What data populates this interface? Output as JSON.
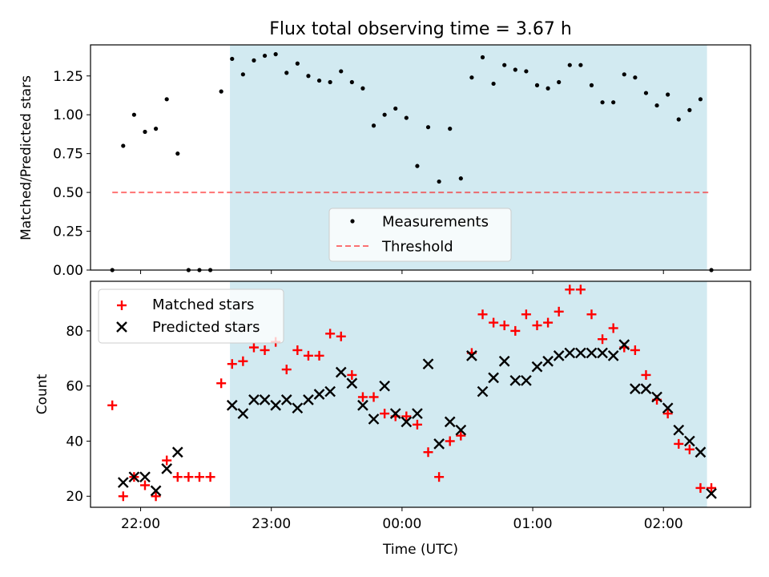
{
  "chart_data": [
    {
      "type": "scatter",
      "title": "Flux total observing time = 3.67 h",
      "ylabel": "Matched/Predicted stars",
      "ylim": [
        0,
        1.45
      ],
      "yticks": [
        0.0,
        0.25,
        0.5,
        0.75,
        1.0,
        1.25
      ],
      "ytick_labels": [
        "0.00",
        "0.25",
        "0.50",
        "0.75",
        "1.00",
        "1.25"
      ],
      "xlim": [
        "21:37",
        "02:40"
      ],
      "observing_window": [
        "22:41",
        "02:20"
      ],
      "observing_window_color": "#add8e6",
      "legend": {
        "placement": "lower-center",
        "entries": [
          "Measurements",
          "Threshold"
        ]
      },
      "threshold": {
        "name": "Threshold",
        "value": 0.5,
        "x_range": [
          "21:47",
          "02:21"
        ],
        "color": "#ff0000",
        "style": "dashed"
      },
      "series": [
        {
          "name": "Measurements",
          "color": "#000000",
          "marker": "dot",
          "x": [
            "21:47",
            "21:52",
            "21:57",
            "22:02",
            "22:07",
            "22:12",
            "22:17",
            "22:22",
            "22:27",
            "22:32",
            "22:37",
            "22:42",
            "22:47",
            "22:52",
            "22:57",
            "23:02",
            "23:07",
            "23:12",
            "23:17",
            "23:22",
            "23:27",
            "23:32",
            "23:37",
            "23:42",
            "23:47",
            "23:52",
            "23:57",
            "00:02",
            "00:07",
            "00:12",
            "00:17",
            "00:22",
            "00:27",
            "00:32",
            "00:37",
            "00:42",
            "00:47",
            "00:52",
            "00:57",
            "01:02",
            "01:07",
            "01:12",
            "01:17",
            "01:22",
            "01:27",
            "01:32",
            "01:37",
            "01:42",
            "01:47",
            "01:52",
            "01:57",
            "02:02",
            "02:07",
            "02:12",
            "02:17",
            "02:22"
          ],
          "y": [
            0.0,
            0.8,
            1.0,
            0.89,
            0.91,
            1.1,
            0.75,
            0.0,
            0.0,
            0.0,
            1.15,
            1.36,
            1.26,
            1.35,
            1.38,
            1.39,
            1.27,
            1.33,
            1.25,
            1.22,
            1.21,
            1.28,
            1.21,
            1.17,
            0.93,
            1.0,
            1.04,
            0.98,
            0.67,
            0.92,
            0.57,
            0.91,
            0.59,
            1.24,
            1.37,
            1.2,
            1.32,
            1.29,
            1.28,
            1.19,
            1.17,
            1.21,
            1.32,
            1.32,
            1.19,
            1.08,
            1.08,
            1.26,
            1.24,
            1.14,
            1.06,
            1.13,
            0.97,
            1.03,
            1.1,
            0.0
          ]
        }
      ]
    },
    {
      "type": "scatter",
      "xlabel": "Time (UTC)",
      "ylabel": "Count",
      "ylim": [
        16,
        98
      ],
      "yticks": [
        20,
        40,
        60,
        80
      ],
      "ytick_labels": [
        "20",
        "40",
        "60",
        "80"
      ],
      "xlim": [
        "21:37",
        "02:40"
      ],
      "xticks": [
        "22:00",
        "23:00",
        "00:00",
        "01:00",
        "02:00"
      ],
      "observing_window": [
        "22:41",
        "02:20"
      ],
      "observing_window_color": "#add8e6",
      "legend": {
        "placement": "top-left",
        "entries": [
          "Matched stars",
          "Predicted stars"
        ]
      },
      "series": [
        {
          "name": "Matched stars",
          "color": "#ff0000",
          "marker": "plus",
          "x": [
            "21:47",
            "21:52",
            "21:57",
            "22:02",
            "22:07",
            "22:12",
            "22:17",
            "22:22",
            "22:27",
            "22:32",
            "22:37",
            "22:42",
            "22:47",
            "22:52",
            "22:57",
            "23:02",
            "23:07",
            "23:12",
            "23:17",
            "23:22",
            "23:27",
            "23:32",
            "23:37",
            "23:42",
            "23:47",
            "23:52",
            "23:57",
            "00:02",
            "00:07",
            "00:12",
            "00:17",
            "00:22",
            "00:27",
            "00:32",
            "00:37",
            "00:42",
            "00:47",
            "00:52",
            "00:57",
            "01:02",
            "01:07",
            "01:12",
            "01:17",
            "01:22",
            "01:27",
            "01:32",
            "01:37",
            "01:42",
            "01:47",
            "01:52",
            "01:57",
            "02:02",
            "02:07",
            "02:12",
            "02:17",
            "02:22"
          ],
          "y": [
            53,
            20,
            27,
            24,
            20,
            33,
            27,
            27,
            27,
            27,
            61,
            68,
            69,
            74,
            73,
            76,
            66,
            73,
            71,
            71,
            79,
            78,
            64,
            56,
            56,
            50,
            49,
            49,
            46,
            36,
            27,
            40,
            42,
            72,
            86,
            83,
            82,
            80,
            86,
            82,
            83,
            87,
            95,
            95,
            86,
            77,
            81,
            74,
            73,
            64,
            55,
            50,
            39,
            37,
            23,
            23
          ]
        },
        {
          "name": "Predicted stars",
          "color": "#000000",
          "marker": "x",
          "x": [
            "21:52",
            "21:57",
            "22:02",
            "22:07",
            "22:12",
            "22:17",
            "22:42",
            "22:47",
            "22:52",
            "22:57",
            "23:02",
            "23:07",
            "23:12",
            "23:17",
            "23:22",
            "23:27",
            "23:32",
            "23:37",
            "23:42",
            "23:47",
            "23:52",
            "23:57",
            "00:02",
            "00:07",
            "00:12",
            "00:17",
            "00:22",
            "00:27",
            "00:32",
            "00:37",
            "00:42",
            "00:47",
            "00:52",
            "00:57",
            "01:02",
            "01:07",
            "01:12",
            "01:17",
            "01:22",
            "01:27",
            "01:32",
            "01:37",
            "01:42",
            "01:47",
            "01:52",
            "01:57",
            "02:02",
            "02:07",
            "02:12",
            "02:17",
            "02:22"
          ],
          "y": [
            25,
            27,
            27,
            22,
            30,
            36,
            53,
            50,
            55,
            55,
            53,
            55,
            52,
            55,
            57,
            58,
            65,
            61,
            53,
            48,
            60,
            50,
            47,
            50,
            68,
            39,
            47,
            44,
            71,
            58,
            63,
            69,
            62,
            62,
            67,
            69,
            71,
            72,
            72,
            72,
            72,
            71,
            75,
            59,
            59,
            56,
            52,
            44,
            40,
            36,
            21
          ]
        }
      ]
    }
  ]
}
